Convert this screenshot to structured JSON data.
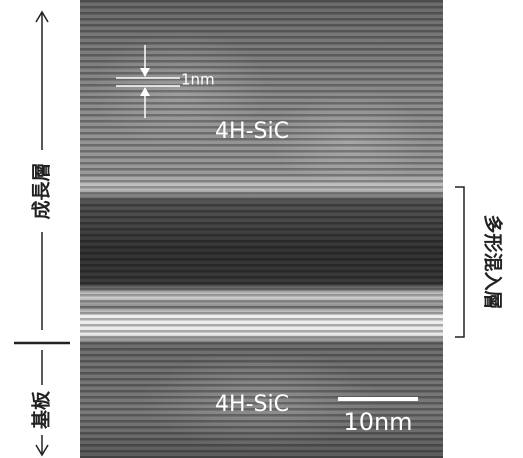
{
  "labels": {
    "top_material": "4H-SiC",
    "scale_small": "1nm",
    "growth_layer": "成長層",
    "substrate": "基板",
    "mixed_layer": "多形混入層",
    "bottom_material": "4H-SiC",
    "scale_bar": "10nm"
  }
}
